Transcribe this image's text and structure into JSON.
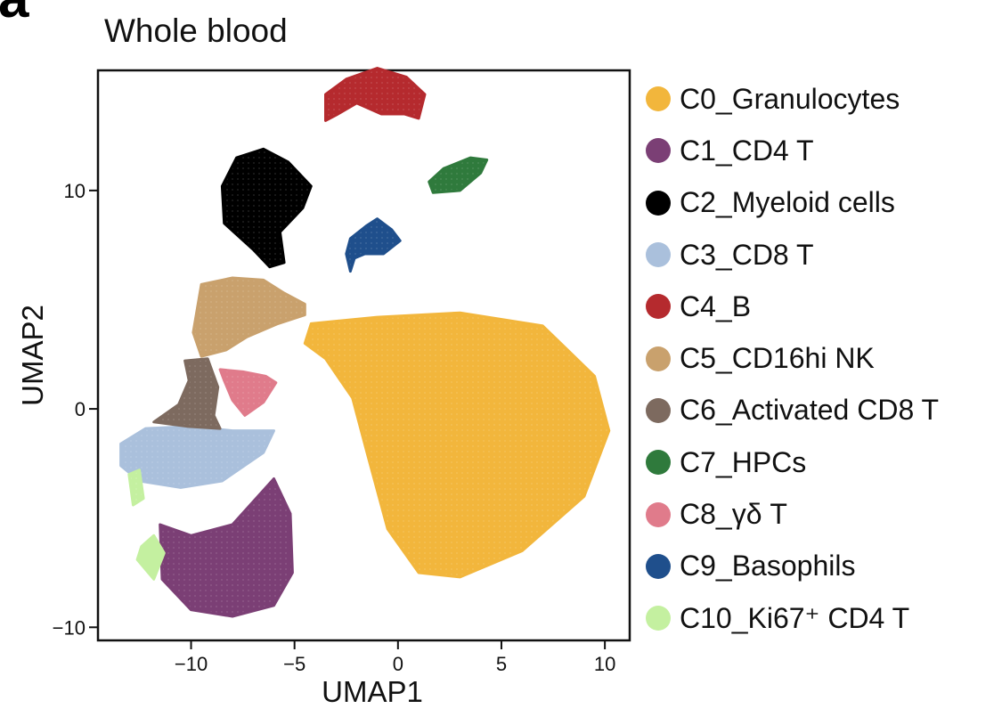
{
  "panel_letter": "a",
  "chart_data": {
    "type": "scatter",
    "title": "Whole blood",
    "xlabel": "UMAP1",
    "ylabel": "UMAP2",
    "xlim": [
      -14.5,
      11.2
    ],
    "ylim": [
      -10.6,
      15.5
    ],
    "xticks": [
      -10,
      -5,
      0,
      5,
      10
    ],
    "xtick_labels": [
      "−10",
      "−5",
      "0",
      "5",
      "10"
    ],
    "yticks": [
      -10,
      0,
      10
    ],
    "ytick_labels": [
      "−10",
      "0",
      "10"
    ],
    "grid": false,
    "legend_position": "right",
    "series": [
      {
        "name": "C0_Granulocytes",
        "color": "#f2b63c",
        "polygon": [
          [
            -4.2,
            3.9
          ],
          [
            -1,
            4.2
          ],
          [
            3,
            4.4
          ],
          [
            7,
            3.8
          ],
          [
            9.5,
            1.5
          ],
          [
            10.2,
            -1
          ],
          [
            9,
            -4
          ],
          [
            6,
            -6.5
          ],
          [
            3,
            -7.7
          ],
          [
            1,
            -7.5
          ],
          [
            -0.5,
            -5.5
          ],
          [
            -1.5,
            -2
          ],
          [
            -2.2,
            0.5
          ],
          [
            -3.5,
            2.3
          ],
          [
            -4.5,
            3
          ]
        ]
      },
      {
        "name": "C1_CD4 T",
        "color": "#7b3f75",
        "polygon": [
          [
            -11.5,
            -5.3
          ],
          [
            -10,
            -5.8
          ],
          [
            -8,
            -5.3
          ],
          [
            -6,
            -3.2
          ],
          [
            -5.2,
            -4.8
          ],
          [
            -5.1,
            -7.5
          ],
          [
            -6,
            -9
          ],
          [
            -8,
            -9.5
          ],
          [
            -10,
            -9.2
          ],
          [
            -11.4,
            -7.8
          ]
        ]
      },
      {
        "name": "C2_Myeloid cells",
        "color": "#000000",
        "polygon": [
          [
            -8.4,
            8.5
          ],
          [
            -8.5,
            10.2
          ],
          [
            -7.8,
            11.5
          ],
          [
            -6.5,
            11.9
          ],
          [
            -5.3,
            11.3
          ],
          [
            -4.2,
            10.2
          ],
          [
            -4.6,
            9.2
          ],
          [
            -5.7,
            8.1
          ],
          [
            -5.5,
            6.7
          ],
          [
            -6.2,
            6.5
          ],
          [
            -7,
            7.3
          ]
        ]
      },
      {
        "name": "C3_CD8 T",
        "color": "#aac0dc",
        "polygon": [
          [
            -13.4,
            -1.6
          ],
          [
            -12.2,
            -0.9
          ],
          [
            -10,
            -0.8
          ],
          [
            -8,
            -1
          ],
          [
            -6,
            -1
          ],
          [
            -6.5,
            -2
          ],
          [
            -8.5,
            -3.3
          ],
          [
            -10.5,
            -3.6
          ],
          [
            -12.5,
            -3.3
          ],
          [
            -13.4,
            -2.6
          ]
        ]
      },
      {
        "name": "C4_B",
        "color": "#b52a2e",
        "polygon": [
          [
            -3.5,
            14.4
          ],
          [
            -2.5,
            15.1
          ],
          [
            -1,
            15.6
          ],
          [
            0.4,
            15.2
          ],
          [
            1.3,
            14.4
          ],
          [
            1,
            13.3
          ],
          [
            0.3,
            13.5
          ],
          [
            -0.8,
            13.5
          ],
          [
            -2,
            14
          ],
          [
            -2.9,
            13.5
          ],
          [
            -3.5,
            13.2
          ]
        ]
      },
      {
        "name": "C5_CD16hi NK",
        "color": "#c9a16d",
        "polygon": [
          [
            -9.5,
            5.7
          ],
          [
            -8,
            6
          ],
          [
            -6.5,
            5.9
          ],
          [
            -5.5,
            5.3
          ],
          [
            -4.5,
            4.8
          ],
          [
            -4.5,
            4.3
          ],
          [
            -5.8,
            3.9
          ],
          [
            -7.3,
            3.3
          ],
          [
            -8.3,
            2.7
          ],
          [
            -9.5,
            2.4
          ],
          [
            -9.9,
            3.5
          ]
        ]
      },
      {
        "name": "C6_Activated CD8 T",
        "color": "#7d6a5f",
        "polygon": [
          [
            -10.3,
            2.2
          ],
          [
            -9.2,
            2.3
          ],
          [
            -8.7,
            1
          ],
          [
            -8.9,
            -0.3
          ],
          [
            -8.6,
            -0.9
          ],
          [
            -10.2,
            -0.8
          ],
          [
            -11.8,
            -0.6
          ],
          [
            -10.6,
            0.2
          ],
          [
            -10.1,
            1.3
          ]
        ]
      },
      {
        "name": "C7_HPCs",
        "color": "#2f7a3c",
        "polygon": [
          [
            1.5,
            10.4
          ],
          [
            2.2,
            11
          ],
          [
            3.5,
            11.5
          ],
          [
            4.3,
            11.4
          ],
          [
            4,
            10.8
          ],
          [
            3,
            10
          ],
          [
            1.7,
            9.9
          ]
        ]
      },
      {
        "name": "C8_γδ T",
        "color": "#e07b8b",
        "polygon": [
          [
            -8.6,
            1.8
          ],
          [
            -7.5,
            1.7
          ],
          [
            -6.4,
            1.5
          ],
          [
            -5.9,
            1.2
          ],
          [
            -6.5,
            0.3
          ],
          [
            -7.4,
            -0.3
          ],
          [
            -8,
            0.4
          ],
          [
            -8.4,
            1.3
          ]
        ]
      },
      {
        "name": "C9_Basophils",
        "color": "#1f4f8c",
        "polygon": [
          [
            -2.3,
            7.8
          ],
          [
            -1.5,
            8.4
          ],
          [
            -1,
            8.7
          ],
          [
            -0.3,
            8.2
          ],
          [
            0.1,
            7.7
          ],
          [
            -0.7,
            7.1
          ],
          [
            -1.6,
            7.1
          ],
          [
            -2.1,
            6.9
          ],
          [
            -2.3,
            6.3
          ],
          [
            -2.5,
            7.1
          ]
        ]
      },
      {
        "name": "C10_Ki67⁺ CD4 T",
        "color": "#c4f0a0",
        "polygon": [
          [
            -13,
            -3
          ],
          [
            -12.5,
            -2.8
          ],
          [
            -12.3,
            -4.1
          ],
          [
            -12.8,
            -4.4
          ]
        ]
      }
    ],
    "extra_regions": [
      {
        "series": "C10_Ki67⁺ CD4 T",
        "polygon": [
          [
            -12.4,
            -6.3
          ],
          [
            -11.8,
            -5.8
          ],
          [
            -11.3,
            -6.6
          ],
          [
            -11.8,
            -7.8
          ],
          [
            -12.6,
            -6.9
          ]
        ]
      }
    ]
  }
}
